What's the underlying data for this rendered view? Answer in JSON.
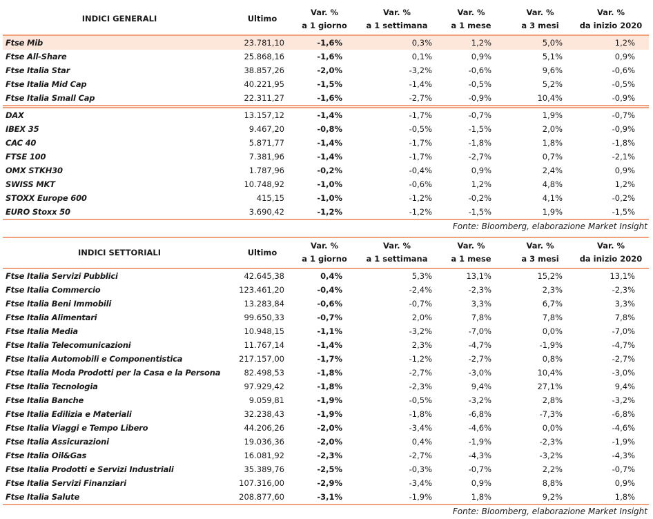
{
  "tables": [
    {
      "header": [
        [
          "INDICI GENERALI"
        ],
        [
          "Ultimo"
        ],
        [
          "Var. %",
          "a 1 giorno"
        ],
        [
          "Var. %",
          "a 1 settimana"
        ],
        [
          "Var. %",
          "a 1 mese"
        ],
        [
          "Var. %",
          "a 3 mesi"
        ],
        [
          "Var. %",
          "da inizio 2020"
        ]
      ],
      "groups": [
        {
          "rows": [
            [
              "Ftse Mib",
              "23.781,10",
              "-1,6%",
              "0,3%",
              "1,2%",
              "5,0%",
              "1,2%"
            ],
            [
              "Ftse All-Share",
              "25.868,16",
              "-1,6%",
              "0,1%",
              "0,9%",
              "5,1%",
              "0,9%"
            ],
            [
              "Ftse Italia Star",
              "38.857,26",
              "-2,0%",
              "-3,2%",
              "-0,6%",
              "9,6%",
              "-0,6%"
            ],
            [
              "Ftse Italia Mid Cap",
              "40.221,95",
              "-1,5%",
              "-1,4%",
              "-0,5%",
              "5,2%",
              "-0,5%"
            ],
            [
              "Ftse Italia Small Cap",
              "22.311,27",
              "-1,6%",
              "-2,7%",
              "-0,9%",
              "10,4%",
              "-0,9%"
            ]
          ]
        },
        {
          "rows": [
            [
              "DAX",
              "13.157,12",
              "-1,4%",
              "-1,7%",
              "-0,7%",
              "1,9%",
              "-0,7%"
            ],
            [
              "IBEX 35",
              "9.467,20",
              "-0,8%",
              "-0,5%",
              "-1,5%",
              "2,0%",
              "-0,9%"
            ],
            [
              "CAC 40",
              "5.871,77",
              "-1,4%",
              "-1,7%",
              "-1,8%",
              "1,8%",
              "-1,8%"
            ],
            [
              "FTSE 100",
              "7.381,96",
              "-1,4%",
              "-1,7%",
              "-2,7%",
              "0,7%",
              "-2,1%"
            ],
            [
              "OMX STKH30",
              "1.787,96",
              "-0,2%",
              "-0,4%",
              "0,9%",
              "2,4%",
              "0,9%"
            ],
            [
              "SWISS MKT",
              "10.748,92",
              "-1,0%",
              "-0,6%",
              "1,2%",
              "4,8%",
              "1,2%"
            ],
            [
              "STOXX Europe 600",
              "415,15",
              "-1,0%",
              "-1,2%",
              "-0,2%",
              "4,1%",
              "-0,2%"
            ],
            [
              "EURO Stoxx 50",
              "3.690,42",
              "-1,2%",
              "-1,2%",
              "-1,5%",
              "1,9%",
              "-1,5%"
            ]
          ]
        }
      ],
      "source": "Fonte: Bloomberg, elaborazione Market Insight"
    },
    {
      "header": [
        [
          "INDICI SETTORIALI"
        ],
        [
          "Ultimo"
        ],
        [
          "Var. %",
          "a 1 giorno"
        ],
        [
          "Var. %",
          "a 1 settimana"
        ],
        [
          "Var. %",
          "a 1 mese"
        ],
        [
          "Var. %",
          "a 3 mesi"
        ],
        [
          "Var. %",
          "da inizio 2020"
        ]
      ],
      "groups": [
        {
          "rows": [
            [
              "Ftse Italia Servizi Pubblici",
              "42.645,38",
              "0,4%",
              "5,3%",
              "13,1%",
              "15,2%",
              "13,1%"
            ],
            [
              "Ftse Italia Commercio",
              "123.461,20",
              "-0,4%",
              "-2,4%",
              "-2,3%",
              "2,3%",
              "-2,3%"
            ],
            [
              "Ftse Italia Beni Immobili",
              "13.283,84",
              "-0,6%",
              "-0,7%",
              "3,3%",
              "6,7%",
              "3,3%"
            ],
            [
              "Ftse Italia Alimentari",
              "99.650,33",
              "-0,7%",
              "2,0%",
              "7,8%",
              "7,8%",
              "7,8%"
            ],
            [
              "Ftse Italia Media",
              "10.948,15",
              "-1,1%",
              "-3,2%",
              "-7,0%",
              "0,0%",
              "-7,0%"
            ],
            [
              "Ftse Italia Telecomunicazioni",
              "11.767,14",
              "-1,4%",
              "2,3%",
              "-4,7%",
              "-1,9%",
              "-4,7%"
            ],
            [
              "Ftse Italia Automobili e Componentistica",
              "217.157,00",
              "-1,7%",
              "-1,2%",
              "-2,7%",
              "0,8%",
              "-2,7%"
            ],
            [
              "Ftse Italia Moda Prodotti per la Casa e la Persona",
              "82.498,53",
              "-1,8%",
              "-2,7%",
              "-3,0%",
              "10,4%",
              "-3,0%"
            ],
            [
              "Ftse Italia Tecnologia",
              "97.929,42",
              "-1,8%",
              "-2,3%",
              "9,4%",
              "27,1%",
              "9,4%"
            ],
            [
              "Ftse Italia Banche",
              "9.059,81",
              "-1,9%",
              "-0,5%",
              "-3,2%",
              "2,8%",
              "-3,2%"
            ],
            [
              "Ftse Italia Edilizia e Materiali",
              "32.238,43",
              "-1,9%",
              "-1,8%",
              "-6,8%",
              "-7,3%",
              "-6,8%"
            ],
            [
              "Ftse Italia Viaggi e Tempo Libero",
              "44.206,26",
              "-2,0%",
              "-3,4%",
              "-4,6%",
              "0,0%",
              "-4,6%"
            ],
            [
              "Ftse Italia Assicurazioni",
              "19.036,36",
              "-2,0%",
              "0,4%",
              "-1,9%",
              "-2,3%",
              "-1,9%"
            ],
            [
              "Ftse Italia Oil&Gas",
              "16.081,92",
              "-2,3%",
              "-2,7%",
              "-4,3%",
              "-3,2%",
              "-4,3%"
            ],
            [
              "Ftse Italia Prodotti e Servizi Industriali",
              "35.389,76",
              "-2,5%",
              "-0,3%",
              "-0,7%",
              "2,2%",
              "-0,7%"
            ],
            [
              "Ftse Italia Servizi Finanziari",
              "107.316,00",
              "-2,9%",
              "-3,4%",
              "0,9%",
              "8,8%",
              "0,9%"
            ],
            [
              "Ftse Italia Salute",
              "208.877,60",
              "-3,1%",
              "-1,9%",
              "1,8%",
              "9,2%",
              "1,8%"
            ]
          ]
        }
      ],
      "source": "Fonte: Bloomberg, elaborazione Market Insight"
    }
  ]
}
